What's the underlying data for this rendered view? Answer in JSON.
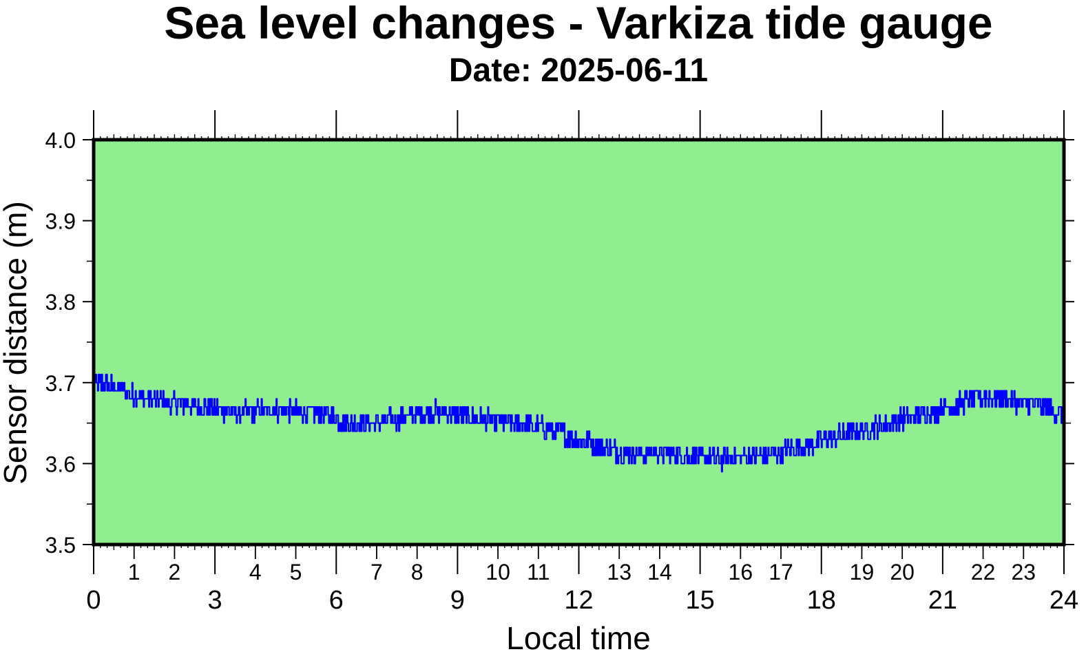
{
  "chart_data": {
    "type": "line",
    "title": "Sea level changes - Varkiza tide gauge",
    "subtitle": "Date: 2025-06-11",
    "xlabel": "Local time",
    "ylabel": "Sensor distance (m)",
    "xlim": [
      0,
      24
    ],
    "ylim": [
      3.5,
      4.0
    ],
    "x_major_ticks": [
      "0",
      "3",
      "6",
      "9",
      "12",
      "15",
      "18",
      "21",
      "24"
    ],
    "x_minor_ticks": [
      "1",
      "2",
      "4",
      "5",
      "7",
      "8",
      "10",
      "11",
      "13",
      "14",
      "16",
      "17",
      "19",
      "20",
      "22",
      "23"
    ],
    "y_ticks": [
      "3.5",
      "3.6",
      "3.7",
      "3.8",
      "3.9",
      "4.0"
    ],
    "grid": false,
    "colors": {
      "background": "#90ee90",
      "series": "#0000ff",
      "frame": "#000000"
    },
    "series": [
      {
        "x": [
          0,
          0.5,
          1,
          1.5,
          2,
          2.5,
          3,
          3.5,
          4,
          4.5,
          5,
          5.5,
          6,
          6.5,
          7,
          7.5,
          8,
          8.5,
          9,
          9.5,
          10,
          10.5,
          11,
          11.5,
          12,
          12.5,
          13,
          13.5,
          14,
          14.5,
          15,
          15.5,
          16,
          16.5,
          17,
          17.5,
          18,
          18.5,
          19,
          19.5,
          20,
          20.5,
          21,
          21.5,
          22,
          22.5,
          23,
          23.5,
          24
        ],
        "values": [
          3.7,
          3.695,
          3.685,
          3.678,
          3.675,
          3.672,
          3.668,
          3.663,
          3.665,
          3.666,
          3.664,
          3.663,
          3.655,
          3.648,
          3.652,
          3.655,
          3.662,
          3.665,
          3.66,
          3.656,
          3.652,
          3.65,
          3.645,
          3.638,
          3.63,
          3.622,
          3.615,
          3.612,
          3.613,
          3.612,
          3.607,
          3.605,
          3.607,
          3.61,
          3.614,
          3.62,
          3.628,
          3.635,
          3.642,
          3.648,
          3.655,
          3.662,
          3.668,
          3.675,
          3.683,
          3.68,
          3.675,
          3.67,
          3.66
        ]
      }
    ]
  }
}
